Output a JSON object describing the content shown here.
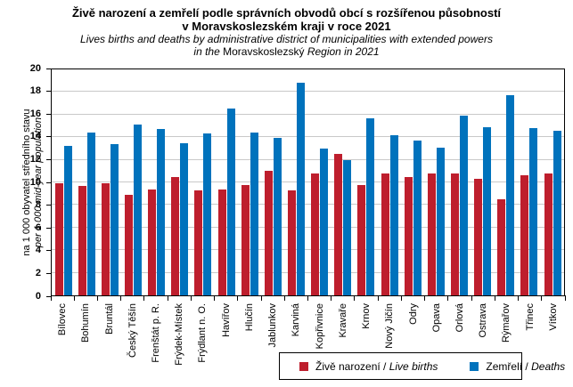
{
  "title": {
    "line1_cs": "Živě narození a zemřelí podle správních obvodů obcí s rozšířenou působností",
    "line2_cs": "v Moravskoslezském  kraji v roce 2021",
    "line3_en": "Lives births and deaths by administrative district of municipalities with extended powers",
    "line4_prefix": "in the ",
    "line4_region": "Moravskoslezský",
    "line4_suffix": " Region in 2021"
  },
  "axis_y": {
    "label_cs": "na 1 000 obyvatel středního stavu",
    "label_en": "per 1 000 mid-year population"
  },
  "legend": {
    "births_cs": "Živě narození",
    "births_en": "Live births",
    "deaths_cs": "Zemřelí",
    "deaths_en": "Deaths",
    "separator": " / "
  },
  "colors": {
    "live_births": "#be1e2d",
    "deaths": "#0072bc",
    "gridline": "#c9c9c9"
  },
  "chart_data": {
    "type": "bar",
    "title": "Živě narození a zemřelí podle správních obvodů obcí s rozšířenou působností v Moravskoslezském kraji v roce 2021 / Lives births and deaths by administrative district of municipalities with extended powers in the Moravskoslezský Region in 2021",
    "categories": [
      "Bílovec",
      "Bohumín",
      "Bruntál",
      "Český Těšín",
      "Frenštát p. R.",
      "Frýdek-Místek",
      "Frýdlant n. O.",
      "Havířov",
      "Hlučín",
      "Jablunkov",
      "Karviná",
      "Kopřivnice",
      "Kravaře",
      "Krnov",
      "Nový Jičín",
      "Odry",
      "Opava",
      "Orlová",
      "Ostrava",
      "Rýmařov",
      "Třinec",
      "Vítkov"
    ],
    "series": [
      {
        "name": "Živě narození / Live births",
        "color_key": "live_births",
        "values": [
          9.9,
          9.7,
          9.9,
          8.9,
          9.4,
          10.5,
          9.3,
          9.4,
          9.8,
          11.0,
          9.3,
          10.8,
          12.5,
          9.8,
          10.8,
          10.5,
          10.8,
          10.8,
          10.3,
          8.5,
          10.6,
          10.8
        ]
      },
      {
        "name": "Zemřelí / Deaths",
        "color_key": "deaths",
        "values": [
          13.2,
          14.4,
          13.4,
          15.1,
          14.7,
          13.5,
          14.3,
          16.5,
          14.4,
          13.9,
          18.8,
          13.0,
          12.0,
          15.7,
          14.2,
          13.7,
          13.1,
          15.9,
          14.9,
          17.7,
          14.8,
          14.6
        ]
      }
    ],
    "xlabel": "",
    "ylabel": "na 1 000 obyvatel středního stavu / per 1 000 mid-year population",
    "ylim": [
      0,
      20
    ],
    "ytick_step": 2,
    "grid": true,
    "legend_position": "bottom"
  }
}
